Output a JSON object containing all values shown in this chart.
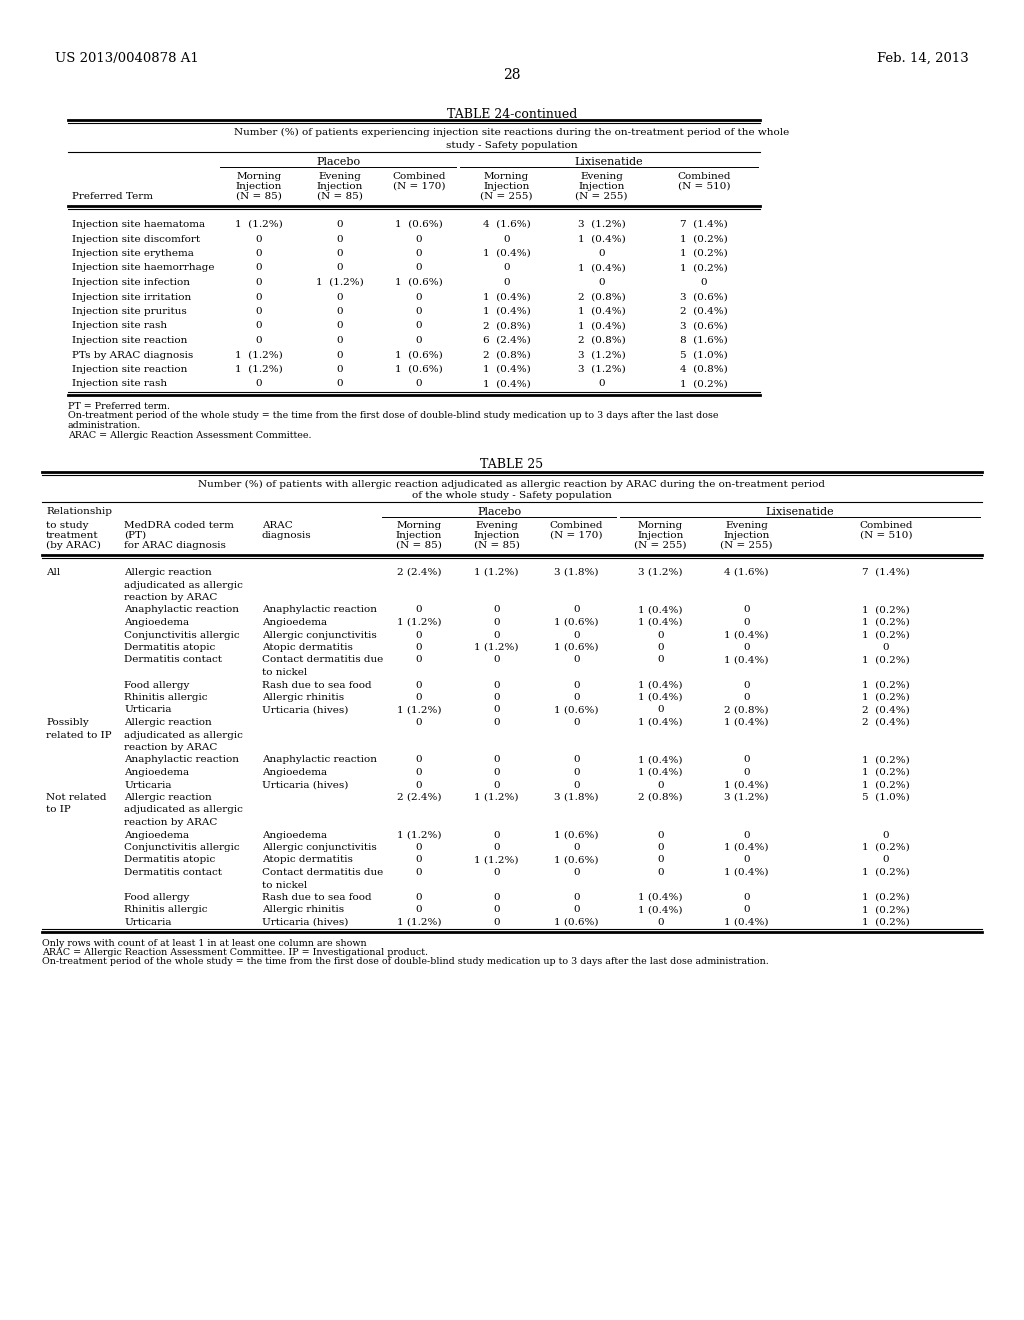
{
  "page_header_left": "US 2013/0040878 A1",
  "page_header_right": "Feb. 14, 2013",
  "page_number": "28",
  "table24_title": "TABLE 24-continued",
  "table24_subtitle1": "Number (%) of patients experiencing injection site reactions during the on-treatment period of the whole",
  "table24_subtitle2": "study - Safety population",
  "table24_rows": [
    [
      "Injection site haematoma",
      "1  (1.2%)",
      "0",
      "1  (0.6%)",
      "4  (1.6%)",
      "3  (1.2%)",
      "7  (1.4%)"
    ],
    [
      "Injection site discomfort",
      "0",
      "0",
      "0",
      "0",
      "1  (0.4%)",
      "1  (0.2%)"
    ],
    [
      "Injection site erythema",
      "0",
      "0",
      "0",
      "1  (0.4%)",
      "0",
      "1  (0.2%)"
    ],
    [
      "Injection site haemorrhage",
      "0",
      "0",
      "0",
      "0",
      "1  (0.4%)",
      "1  (0.2%)"
    ],
    [
      "Injection site infection",
      "0",
      "1  (1.2%)",
      "1  (0.6%)",
      "0",
      "0",
      "0"
    ],
    [
      "Injection site irritation",
      "0",
      "0",
      "0",
      "1  (0.4%)",
      "2  (0.8%)",
      "3  (0.6%)"
    ],
    [
      "Injection site pruritus",
      "0",
      "0",
      "0",
      "1  (0.4%)",
      "1  (0.4%)",
      "2  (0.4%)"
    ],
    [
      "Injection site rash",
      "0",
      "0",
      "0",
      "2  (0.8%)",
      "1  (0.4%)",
      "3  (0.6%)"
    ],
    [
      "Injection site reaction",
      "0",
      "0",
      "0",
      "6  (2.4%)",
      "2  (0.8%)",
      "8  (1.6%)"
    ],
    [
      "PTs by ARAC diagnosis",
      "1  (1.2%)",
      "0",
      "1  (0.6%)",
      "2  (0.8%)",
      "3  (1.2%)",
      "5  (1.0%)"
    ],
    [
      "Injection site reaction",
      "1  (1.2%)",
      "0",
      "1  (0.6%)",
      "1  (0.4%)",
      "3  (1.2%)",
      "4  (0.8%)"
    ],
    [
      "Injection site rash",
      "0",
      "0",
      "0",
      "1  (0.4%)",
      "0",
      "1  (0.2%)"
    ]
  ],
  "table24_footnotes": [
    "PT = Preferred term.",
    "On-treatment period of the whole study = the time from the first dose of double-blind study medication up to 3 days after the last dose",
    "administration.",
    "ARAC = Allergic Reaction Assessment Committee."
  ],
  "table25_title": "TABLE 25",
  "table25_subtitle1": "Number (%) of patients with allergic reaction adjudicated as allergic reaction by ARAC during the on-treatment period",
  "table25_subtitle2": "of the whole study - Safety population",
  "table25_rows": [
    [
      "All",
      "Allergic reaction",
      "",
      "2 (2.4%)",
      "1 (1.2%)",
      "3 (1.8%)",
      "3 (1.2%)",
      "4 (1.6%)",
      "7  (1.4%)"
    ],
    [
      "",
      "adjudicated as allergic",
      "",
      "",
      "",
      "",
      "",
      "",
      ""
    ],
    [
      "",
      "reaction by ARAC",
      "",
      "",
      "",
      "",
      "",
      "",
      ""
    ],
    [
      "",
      "Anaphylactic reaction",
      "Anaphylactic reaction",
      "0",
      "0",
      "0",
      "1 (0.4%)",
      "0",
      "1  (0.2%)"
    ],
    [
      "",
      "Angioedema",
      "Angioedema",
      "1 (1.2%)",
      "0",
      "1 (0.6%)",
      "1 (0.4%)",
      "0",
      "1  (0.2%)"
    ],
    [
      "",
      "Conjunctivitis allergic",
      "Allergic conjunctivitis",
      "0",
      "0",
      "0",
      "0",
      "1 (0.4%)",
      "1  (0.2%)"
    ],
    [
      "",
      "Dermatitis atopic",
      "Atopic dermatitis",
      "0",
      "1 (1.2%)",
      "1 (0.6%)",
      "0",
      "0",
      "0"
    ],
    [
      "",
      "Dermatitis contact",
      "Contact dermatitis due",
      "0",
      "0",
      "0",
      "0",
      "1 (0.4%)",
      "1  (0.2%)"
    ],
    [
      "",
      "",
      "to nickel",
      "",
      "",
      "",
      "",
      "",
      ""
    ],
    [
      "",
      "Food allergy",
      "Rash due to sea food",
      "0",
      "0",
      "0",
      "1 (0.4%)",
      "0",
      "1  (0.2%)"
    ],
    [
      "",
      "Rhinitis allergic",
      "Allergic rhinitis",
      "0",
      "0",
      "0",
      "1 (0.4%)",
      "0",
      "1  (0.2%)"
    ],
    [
      "",
      "Urticaria",
      "Urticaria (hives)",
      "1 (1.2%)",
      "0",
      "1 (0.6%)",
      "0",
      "2 (0.8%)",
      "2  (0.4%)"
    ],
    [
      "Possibly",
      "Allergic reaction",
      "",
      "0",
      "0",
      "0",
      "1 (0.4%)",
      "1 (0.4%)",
      "2  (0.4%)"
    ],
    [
      "related to IP",
      "adjudicated as allergic",
      "",
      "",
      "",
      "",
      "",
      "",
      ""
    ],
    [
      "",
      "reaction by ARAC",
      "",
      "",
      "",
      "",
      "",
      "",
      ""
    ],
    [
      "",
      "Anaphylactic reaction",
      "Anaphylactic reaction",
      "0",
      "0",
      "0",
      "1 (0.4%)",
      "0",
      "1  (0.2%)"
    ],
    [
      "",
      "Angioedema",
      "Angioedema",
      "0",
      "0",
      "0",
      "1 (0.4%)",
      "0",
      "1  (0.2%)"
    ],
    [
      "",
      "Urticaria",
      "Urticaria (hives)",
      "0",
      "0",
      "0",
      "0",
      "1 (0.4%)",
      "1  (0.2%)"
    ],
    [
      "Not related",
      "Allergic reaction",
      "",
      "2 (2.4%)",
      "1 (1.2%)",
      "3 (1.8%)",
      "2 (0.8%)",
      "3 (1.2%)",
      "5  (1.0%)"
    ],
    [
      "to IP",
      "adjudicated as allergic",
      "",
      "",
      "",
      "",
      "",
      "",
      ""
    ],
    [
      "",
      "reaction by ARAC",
      "",
      "",
      "",
      "",
      "",
      "",
      ""
    ],
    [
      "",
      "Angioedema",
      "Angioedema",
      "1 (1.2%)",
      "0",
      "1 (0.6%)",
      "0",
      "0",
      "0"
    ],
    [
      "",
      "Conjunctivitis allergic",
      "Allergic conjunctivitis",
      "0",
      "0",
      "0",
      "0",
      "1 (0.4%)",
      "1  (0.2%)"
    ],
    [
      "",
      "Dermatitis atopic",
      "Atopic dermatitis",
      "0",
      "1 (1.2%)",
      "1 (0.6%)",
      "0",
      "0",
      "0"
    ],
    [
      "",
      "Dermatitis contact",
      "Contact dermatitis due",
      "0",
      "0",
      "0",
      "0",
      "1 (0.4%)",
      "1  (0.2%)"
    ],
    [
      "",
      "",
      "to nickel",
      "",
      "",
      "",
      "",
      "",
      ""
    ],
    [
      "",
      "Food allergy",
      "Rash due to sea food",
      "0",
      "0",
      "0",
      "1 (0.4%)",
      "0",
      "1  (0.2%)"
    ],
    [
      "",
      "Rhinitis allergic",
      "Allergic rhinitis",
      "0",
      "0",
      "0",
      "1 (0.4%)",
      "0",
      "1  (0.2%)"
    ],
    [
      "",
      "Urticaria",
      "Urticaria (hives)",
      "1 (1.2%)",
      "0",
      "1 (0.6%)",
      "0",
      "1 (0.4%)",
      "1  (0.2%)"
    ]
  ],
  "table25_footnotes": [
    "Only rows with count of at least 1 in at least one column are shown",
    "ARAC = Allergic Reaction Assessment Committee. IP = Investigational product.",
    "On-treatment period of the whole study = the time from the first dose of double-blind study medication up to 3 days after the last dose administration."
  ],
  "bg_color": "#ffffff",
  "text_color": "#000000",
  "line_color": "#000000"
}
